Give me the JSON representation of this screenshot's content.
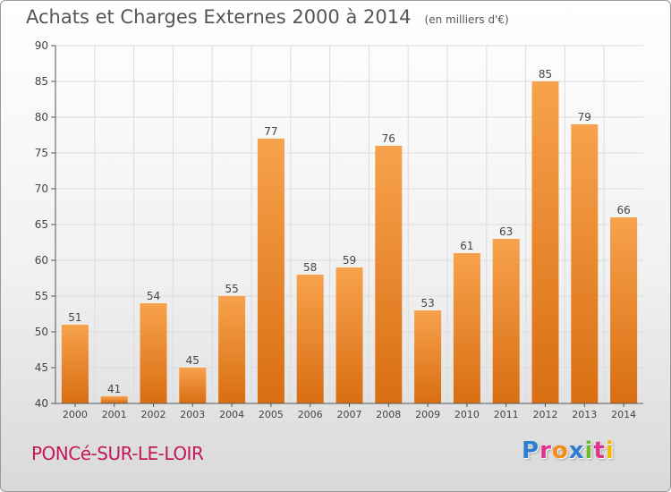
{
  "header": {
    "title": "Achats et Charges Externes 2000 à 2014",
    "subtitle": "(en milliers d'€)"
  },
  "footer": {
    "commune": "PONCé-SUR-LE-LOIR",
    "logo_letters": [
      {
        "char": "P",
        "color": "#2f7fd0"
      },
      {
        "char": "r",
        "color": "#e0338c"
      },
      {
        "char": "o",
        "color": "#f28c1a"
      },
      {
        "char": "x",
        "color": "#2f7fd0"
      },
      {
        "char": "i",
        "color": "#6dbb2c"
      },
      {
        "char": "t",
        "color": "#e0338c"
      },
      {
        "char": "i",
        "color": "#f5b800"
      }
    ]
  },
  "colors": {
    "bar_top": "#f7a24c",
    "bar_bottom": "#d96e12",
    "grid": "#dcdcdc",
    "axis": "#555555"
  },
  "chart_data": {
    "type": "bar",
    "title": "Achats et Charges Externes 2000 à 2014",
    "subtitle": "(en milliers d'€)",
    "categories": [
      "2000",
      "2001",
      "2002",
      "2003",
      "2004",
      "2005",
      "2006",
      "2007",
      "2008",
      "2009",
      "2010",
      "2011",
      "2012",
      "2013",
      "2014"
    ],
    "values": [
      51,
      41,
      54,
      45,
      55,
      77,
      58,
      59,
      76,
      53,
      61,
      63,
      85,
      79,
      66
    ],
    "ylim": [
      40,
      90
    ],
    "yticks": [
      40,
      45,
      50,
      55,
      60,
      65,
      70,
      75,
      80,
      85,
      90
    ],
    "grid": true,
    "data_labels": true
  }
}
